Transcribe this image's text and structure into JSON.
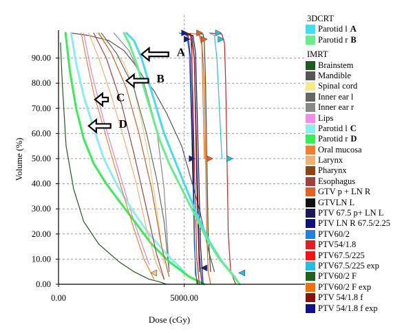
{
  "chart_data": {
    "type": "line",
    "title": "",
    "xlabel": "Dose (cGy)",
    "ylabel": "Volume (%)",
    "xlim": [
      0,
      9800
    ],
    "ylim": [
      0,
      100
    ],
    "x_ticks": [
      {
        "value": 0,
        "label": "0.00"
      },
      {
        "value": 5000,
        "label": "5000.00"
      }
    ],
    "y_ticks": [
      {
        "value": 0,
        "label": "0.00"
      },
      {
        "value": 10,
        "label": "10.00"
      },
      {
        "value": 20,
        "label": "20.00"
      },
      {
        "value": 30,
        "label": "30.00"
      },
      {
        "value": 40,
        "label": "40.00"
      },
      {
        "value": 50,
        "label": "50.00"
      },
      {
        "value": 60,
        "label": "60.00"
      },
      {
        "value": 70,
        "label": "70.00"
      },
      {
        "value": 80,
        "label": "80.00"
      },
      {
        "value": 90,
        "label": "90.00"
      }
    ],
    "grid": true,
    "series": [
      {
        "name": "Brainstem",
        "color": "#1e5a1e",
        "x": [
          80,
          150,
          300,
          600,
          1000,
          1600,
          2400,
          3000,
          3600,
          4000,
          4300
        ],
        "y": [
          96,
          80,
          55,
          38,
          25,
          16,
          9,
          5,
          2,
          1,
          0
        ]
      },
      {
        "name": "Mandible",
        "color": "#555555",
        "x": [
          500,
          1200,
          2000,
          2600,
          3000,
          3400,
          3800,
          4300,
          4900,
          5600,
          6000,
          6200
        ],
        "y": [
          100,
          99,
          97,
          93,
          88,
          82,
          77,
          68,
          55,
          30,
          12,
          5
        ]
      },
      {
        "name": "Spinal cord",
        "color": "#e0d080",
        "x": [
          1500,
          2000,
          2600,
          3000,
          3300,
          3600,
          3900,
          4200
        ],
        "y": [
          100,
          96,
          88,
          78,
          65,
          50,
          30,
          8
        ]
      },
      {
        "name": "Inner ear l",
        "color": "#666666",
        "x": [
          1700,
          2300,
          3000,
          3500,
          3900,
          4200,
          4400
        ],
        "y": [
          100,
          92,
          78,
          60,
          42,
          25,
          5
        ]
      },
      {
        "name": "Inner ear r",
        "color": "#888888",
        "x": [
          2200,
          2800,
          3400,
          3900,
          4200,
          4400
        ],
        "y": [
          100,
          93,
          80,
          62,
          38,
          6
        ]
      },
      {
        "name": "Lips",
        "color": "#e080e0",
        "x": [
          1000,
          1300,
          1800,
          2400,
          3000,
          3600
        ],
        "y": [
          100,
          85,
          65,
          45,
          25,
          8
        ]
      },
      {
        "name": "Parotid l C",
        "color": "#88eeee",
        "x": [
          500,
          700,
          1000,
          1400,
          1800,
          2300,
          2900,
          3600,
          4300,
          5000
        ],
        "y": [
          100,
          88,
          75,
          62,
          50,
          40,
          30,
          20,
          12,
          5
        ]
      },
      {
        "name": "Parotid r D",
        "color": "#33ee55",
        "x": [
          280,
          450,
          700,
          1000,
          1400,
          1900,
          2500,
          3100,
          3700,
          4400,
          5200,
          5800
        ],
        "y": [
          100,
          85,
          70,
          58,
          48,
          40,
          32,
          24,
          16,
          9,
          3,
          0
        ]
      },
      {
        "name": "Oral mucosa",
        "color": "#f08030",
        "x": [
          900,
          1100,
          1400,
          1800,
          2200,
          2600,
          3000,
          3400,
          3800
        ],
        "y": [
          100,
          90,
          76,
          62,
          48,
          35,
          22,
          10,
          2
        ]
      },
      {
        "name": "Larynx",
        "color": "#f0b070",
        "x": [
          1200,
          1600,
          2100,
          2600,
          3100,
          3500,
          3900,
          4200
        ],
        "y": [
          100,
          90,
          75,
          58,
          40,
          22,
          8,
          2
        ]
      },
      {
        "name": "Pharynx",
        "color": "#c86020",
        "x": [
          1600,
          2100,
          2700,
          3200,
          3700,
          4100,
          4400
        ],
        "y": [
          100,
          92,
          78,
          60,
          38,
          15,
          3
        ]
      },
      {
        "name": "Esophagus",
        "color": "#a04040",
        "x": [
          1400,
          1900,
          2500,
          3000,
          3500,
          3900,
          4200
        ],
        "y": [
          100,
          90,
          72,
          52,
          30,
          12,
          2
        ]
      },
      {
        "name": "GTV p + LN R",
        "color": "#e86020",
        "x": [
          5000,
          5600,
          5700,
          5800,
          5850,
          5900,
          5950,
          6050
        ],
        "y": [
          100,
          99.5,
          97,
          80,
          50,
          20,
          5,
          0
        ]
      },
      {
        "name": "GTVLN L",
        "color": "#111111",
        "x": [
          4900,
          5250,
          5300,
          5350,
          5400,
          5450,
          5550
        ],
        "y": [
          100,
          99.5,
          95,
          60,
          20,
          4,
          0
        ]
      },
      {
        "name": "PTV 67.5 p+ LN L",
        "color": "#1a1a5a",
        "x": [
          4900,
          5300,
          5400,
          5500,
          5600,
          5700
        ],
        "y": [
          100,
          99,
          90,
          50,
          12,
          0
        ]
      },
      {
        "name": "PTV LN R 67.5/2.25",
        "color": "#101080",
        "x": [
          4950,
          5350,
          5450,
          5550,
          5650,
          5750
        ],
        "y": [
          100,
          99,
          92,
          55,
          15,
          0
        ]
      },
      {
        "name": "PTV60/2",
        "color": "#2080e0",
        "x": [
          4800,
          5100,
          5200,
          5300,
          5400,
          5500
        ],
        "y": [
          100,
          99,
          92,
          60,
          15,
          0
        ]
      },
      {
        "name": "PTV54/1.8",
        "color": "#e02020",
        "x": [
          4900,
          5250,
          5300,
          5400,
          5500,
          5600
        ],
        "y": [
          100,
          99,
          92,
          50,
          10,
          0
        ]
      },
      {
        "name": "PTV67.5/225",
        "color": "#cc2222",
        "x": [
          6000,
          6500,
          6600,
          6650,
          6700,
          6750,
          6850,
          7050
        ],
        "y": [
          100,
          99.5,
          96,
          80,
          50,
          20,
          5,
          0
        ]
      },
      {
        "name": "PTV67.5/225 exp",
        "color": "#22c0e0",
        "x": [
          6000,
          6200,
          6300,
          6500
        ],
        "y": [
          100,
          99,
          90,
          50
        ]
      },
      {
        "name": "PTV60/2 F",
        "color": "#206020",
        "x": [
          5500,
          5750,
          5800,
          5850,
          5900,
          5950,
          6050
        ],
        "y": [
          100,
          99.5,
          96,
          80,
          50,
          20,
          5
        ]
      },
      {
        "name": "PTV60/2 F exp",
        "color": "#f07010",
        "x": [
          5500,
          5600,
          5700,
          5800
        ],
        "y": [
          100,
          99,
          95,
          50
        ]
      },
      {
        "name": "PTV 54/1.8 f",
        "color": "#8b1010",
        "x": [
          4950,
          5300,
          5400,
          5500,
          5600
        ],
        "y": [
          100,
          99,
          90,
          40,
          5
        ]
      },
      {
        "name": "PTV 54/1.8 f exp",
        "color": "#101090",
        "x": [
          4950,
          5150,
          5250,
          5350
        ],
        "y": [
          100,
          99,
          90,
          40
        ]
      },
      {
        "name": "Parotid l A",
        "color": "#44ddee",
        "x": [
          2700,
          3000,
          3300,
          3600,
          3900,
          4200,
          4600,
          5000,
          5500,
          6000,
          6500,
          7000,
          7200
        ],
        "y": [
          100,
          97,
          90,
          80,
          70,
          60,
          50,
          40,
          28,
          17,
          9,
          3,
          0
        ]
      },
      {
        "name": "Parotid r B",
        "color": "#66ee88",
        "x": [
          2600,
          2800,
          3100,
          3400,
          3700,
          4000,
          4400,
          4900,
          5400,
          5900,
          6400,
          6900,
          7200
        ],
        "y": [
          100,
          96,
          88,
          78,
          68,
          58,
          48,
          38,
          28,
          18,
          10,
          4,
          0
        ]
      }
    ],
    "markers": [
      {
        "x": 5000,
        "y": 100,
        "color": "#1a1a8a",
        "dir": "right"
      },
      {
        "x": 5600,
        "y": 100,
        "color": "#e86020",
        "dir": "right"
      },
      {
        "x": 6350,
        "y": 100,
        "color": "#22c0e0",
        "dir": "right"
      },
      {
        "x": 5100,
        "y": 97.5,
        "color": "#1a1a8a",
        "dir": "right"
      },
      {
        "x": 5780,
        "y": 97.5,
        "color": "#e86020",
        "dir": "right"
      },
      {
        "x": 6450,
        "y": 97.5,
        "color": "#22c0e0",
        "dir": "right"
      },
      {
        "x": 5300,
        "y": 50,
        "color": "#1a1a8a",
        "dir": "right"
      },
      {
        "x": 6000,
        "y": 50,
        "color": "#e86020",
        "dir": "right"
      },
      {
        "x": 6800,
        "y": 50,
        "color": "#22c0e0",
        "dir": "right"
      },
      {
        "x": 3800,
        "y": 4.5,
        "color": "#e0d080",
        "dir": "left"
      },
      {
        "x": 5800,
        "y": 6.5,
        "color": "#1a1a8a",
        "dir": "left"
      },
      {
        "x": 7300,
        "y": 4.5,
        "color": "#22c0e0",
        "dir": "left"
      }
    ],
    "annotations": [
      {
        "label": "A",
        "x": 4700,
        "y": 92.5,
        "arrow_to": [
          3300,
          91.5
        ]
      },
      {
        "label": "B",
        "x": 3900,
        "y": 82,
        "arrow_to": [
          2700,
          81
        ]
      },
      {
        "label": "C",
        "x": 2300,
        "y": 74.5,
        "arrow_to": [
          1450,
          73.5
        ]
      },
      {
        "label": "D",
        "x": 2400,
        "y": 64,
        "arrow_to": [
          1200,
          63
        ]
      }
    ],
    "legend_position": "right",
    "legend_groups": [
      {
        "title": "3DCRT",
        "items": [
          {
            "label": "Parotid l",
            "tag": "A",
            "color": "#44ddee"
          },
          {
            "label": "Parotid r",
            "tag": "B",
            "color": "#66ee88"
          }
        ]
      },
      {
        "title": "IMRT",
        "items": [
          {
            "label": "Brainstem",
            "color": "#1e5a1e"
          },
          {
            "label": "Mandible",
            "color": "#555555"
          },
          {
            "label": "Spinal cord",
            "color": "#f7e98a"
          },
          {
            "label": "Inner ear l",
            "color": "#666666"
          },
          {
            "label": "Inner ear r",
            "color": "#888888"
          },
          {
            "label": "Lips",
            "color": "#f08cf0"
          },
          {
            "label": "Parotid l",
            "tag": "C",
            "color": "#88eeee"
          },
          {
            "label": "Parotid r",
            "tag": "D",
            "color": "#33ee55"
          },
          {
            "label": "Oral mucosa",
            "color": "#f08030"
          },
          {
            "label": "Larynx",
            "color": "#f0b070"
          },
          {
            "label": "Pharynx",
            "color": "#8b4513"
          },
          {
            "label": "Esophagus",
            "color": "#a04040"
          },
          {
            "label": "GTV p + LN R",
            "color": "#e86020"
          },
          {
            "label": "GTVLN L",
            "color": "#111111"
          },
          {
            "label": "PTV 67.5 p+ LN L",
            "color": "#1a1a5a"
          },
          {
            "label": "PTV LN R 67.5/2.25",
            "color": "#101080"
          },
          {
            "label": "PTV60/2",
            "color": "#2080e0"
          },
          {
            "label": "PTV54/1.8",
            "color": "#e02020"
          },
          {
            "label": "PTV67.5/225",
            "color": "#ff1010"
          },
          {
            "label": "PTV67.5/225 exp",
            "color": "#22c0e0"
          },
          {
            "label": "PTV60/2 F",
            "color": "#206020"
          },
          {
            "label": "PTV60/2 F exp",
            "color": "#f07010"
          },
          {
            "label": "PTV 54/1.8 f",
            "color": "#8b1010"
          },
          {
            "label": "PTV 54/1.8 f exp",
            "color": "#101090"
          }
        ]
      }
    ]
  }
}
